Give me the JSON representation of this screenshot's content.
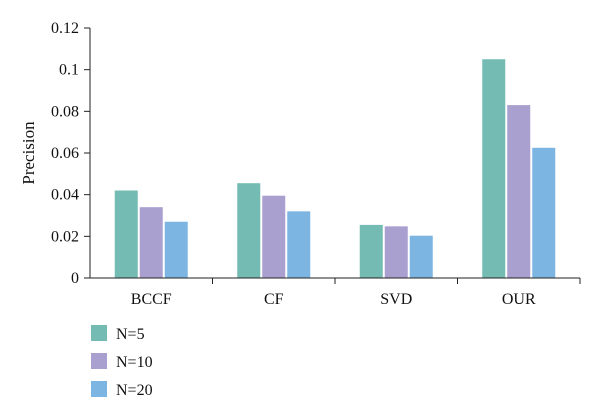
{
  "chart_data": {
    "type": "bar",
    "categories": [
      "BCCF",
      "CF",
      "SVD",
      "OUR"
    ],
    "series": [
      {
        "name": "N=5",
        "values": [
          0.042,
          0.0455,
          0.0255,
          0.105
        ],
        "color": "#74bbb4"
      },
      {
        "name": "N=10",
        "values": [
          0.034,
          0.0395,
          0.0248,
          0.083
        ],
        "color": "#aaa0d0"
      },
      {
        "name": "N=20",
        "values": [
          0.027,
          0.032,
          0.0203,
          0.0625
        ],
        "color": "#7db5e2"
      }
    ],
    "title": "",
    "xlabel": "",
    "ylabel": "Precision",
    "ylim": [
      0,
      0.12
    ],
    "yticks": [
      "0",
      "0.02",
      "0.04",
      "0.06",
      "0.08",
      "0.1",
      "0.12"
    ],
    "grid": false,
    "legend_position": "bottom-left"
  }
}
